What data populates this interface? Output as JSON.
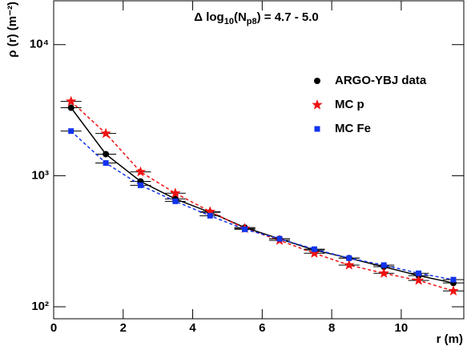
{
  "chart_data": {
    "type": "scatter",
    "annotation": [
      {
        "text": "Δ log"
      },
      {
        "text": "10",
        "sub": true
      },
      {
        "text": "(N"
      },
      {
        "text": "p8",
        "sub": true
      },
      {
        "text": ") = 4.7 - 5.0"
      }
    ],
    "x_label": "r (m)",
    "y_label": "ρ (r) (m⁻²)",
    "xlim": [
      0,
      11.8
    ],
    "ylim": [
      81,
      21600
    ],
    "log_y": true,
    "legend": "upper right",
    "xticks": [
      0,
      2,
      4,
      6,
      8,
      10
    ],
    "yticks": [
      {
        "value": 100,
        "label": "10²"
      },
      {
        "value": 1000,
        "label": "10³"
      },
      {
        "value": 10000,
        "label": "10⁴"
      }
    ],
    "series": [
      {
        "name": "ARGO-YBJ data",
        "color": "#000000",
        "marker": "circle",
        "line_dash": "none",
        "xerr": 0.3,
        "x": [
          0.5,
          1.5,
          2.5,
          3.5,
          4.5,
          5.5,
          6.5,
          7.5,
          8.5,
          9.5,
          10.5,
          11.5
        ],
        "values": [
          3300,
          1460,
          905,
          665,
          525,
          402,
          330,
          271,
          235,
          202,
          173,
          152
        ]
      },
      {
        "name": "MC p",
        "color": "#ee1111",
        "marker": "star",
        "line_dash": "4,3",
        "xerr": 0.3,
        "x": [
          0.5,
          1.5,
          2.5,
          3.5,
          4.5,
          5.5,
          6.5,
          7.5,
          8.5,
          9.5,
          10.5,
          11.5
        ],
        "values": [
          3690,
          2100,
          1070,
          735,
          532,
          396,
          321,
          256,
          208,
          180,
          159,
          132
        ]
      },
      {
        "name": "MC Fe",
        "color": "#1133ee",
        "marker": "square",
        "line_dash": "4,3",
        "xerr": 0.3,
        "x": [
          0.5,
          1.5,
          2.5,
          3.5,
          4.5,
          5.5,
          6.5,
          7.5,
          8.5,
          9.5,
          10.5,
          11.5
        ],
        "values": [
          2190,
          1250,
          845,
          638,
          495,
          390,
          330,
          275,
          235,
          208,
          180,
          161
        ]
      }
    ]
  }
}
